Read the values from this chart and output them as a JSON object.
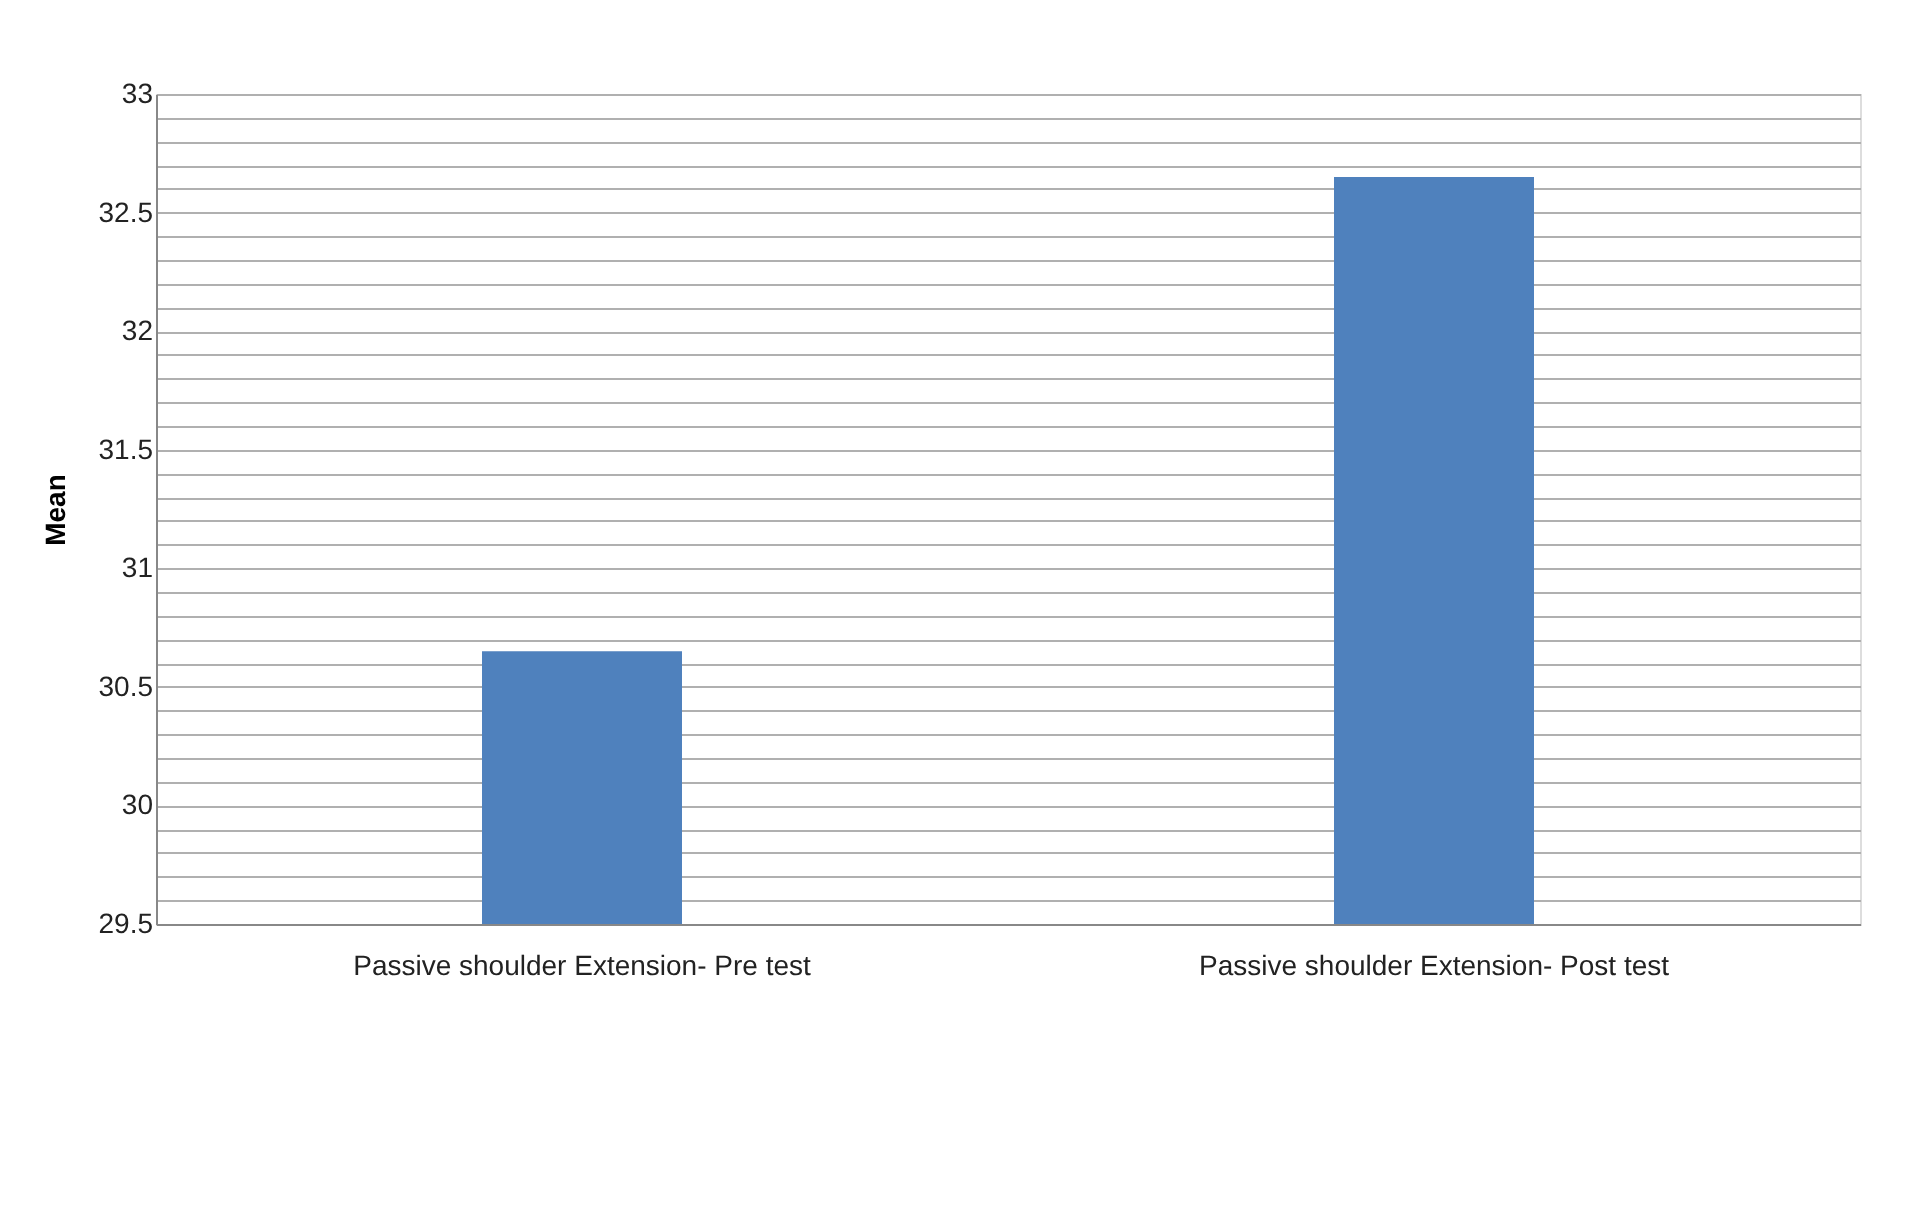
{
  "chart_data": {
    "type": "bar",
    "ylabel": "Mean",
    "categories": [
      "Passive shoulder Extension- Pre test",
      "Passive shoulder Extension- Post  test"
    ],
    "values": [
      30.65,
      32.65
    ],
    "color": "#4f81bd",
    "ylim": [
      29.5,
      33
    ],
    "yticks": [
      29.5,
      {
        "value": 29.6,
        "label": null
      },
      {
        "value": 29.7,
        "label": null
      },
      {
        "value": 29.8,
        "label": null
      },
      {
        "value": 29.9,
        "label": null
      },
      30,
      {
        "value": 30.1,
        "label": null
      },
      {
        "value": 30.2,
        "label": null
      },
      {
        "value": 30.3,
        "label": null
      },
      {
        "value": 30.4,
        "label": null
      },
      30.5,
      {
        "value": 30.6,
        "label": null
      },
      {
        "value": 30.7,
        "label": null
      },
      {
        "value": 30.8,
        "label": null
      },
      {
        "value": 30.9,
        "label": null
      },
      31,
      {
        "value": 31.1,
        "label": null
      },
      {
        "value": 31.2,
        "label": null
      },
      {
        "value": 31.3,
        "label": null
      },
      {
        "value": 31.4,
        "label": null
      },
      31.5,
      {
        "value": 31.6,
        "label": null
      },
      {
        "value": 31.7,
        "label": null
      },
      {
        "value": 31.8,
        "label": null
      },
      {
        "value": 31.9,
        "label": null
      },
      32,
      {
        "value": 32.1,
        "label": null
      },
      {
        "value": 32.2,
        "label": null
      },
      {
        "value": 32.3,
        "label": null
      },
      {
        "value": 32.4,
        "label": null
      },
      32.5,
      {
        "value": 32.6,
        "label": null
      },
      {
        "value": 32.7,
        "label": null
      },
      {
        "value": 32.8,
        "label": null
      },
      {
        "value": 32.9,
        "label": null
      },
      33
    ],
    "grid": "y"
  }
}
